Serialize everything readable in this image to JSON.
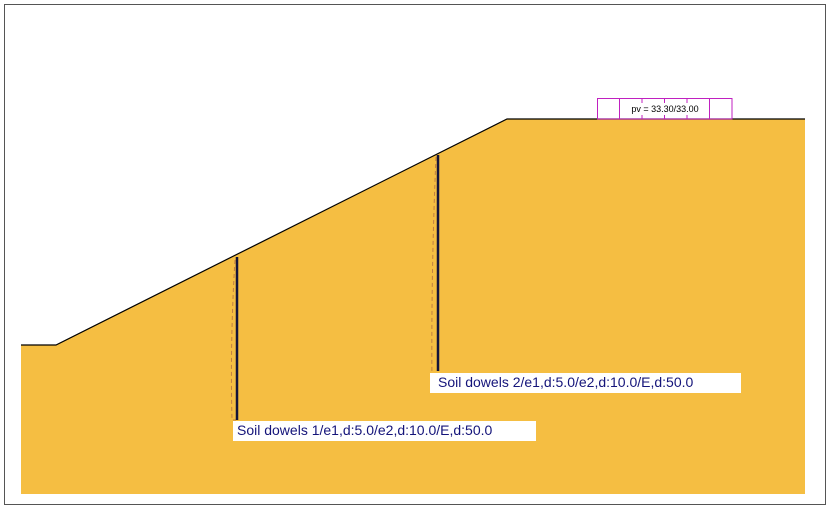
{
  "load": {
    "label": "pv = 33.30/33.00"
  },
  "dowels": [
    {
      "label": "Soil dowels 1/e1,d:5.0/e2,d:10.0/E,d:50.0"
    },
    {
      "label": "Soil dowels 2/e1,d:5.0/e2,d:10.0/E,d:50.0"
    }
  ]
}
